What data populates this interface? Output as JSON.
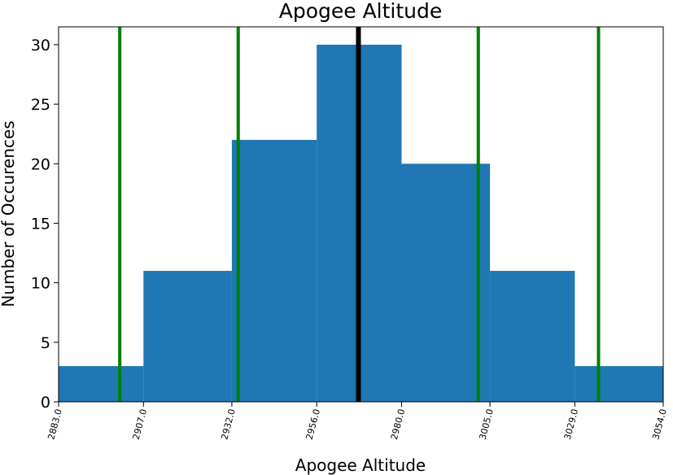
{
  "chart_data": {
    "type": "bar",
    "title": "Apogee Altitude",
    "xlabel": "Apogee Altitude",
    "ylabel": "Number of Occurences",
    "bin_edges": [
      2883.0,
      2907.0,
      2932.0,
      2956.0,
      2980.0,
      3005.0,
      3029.0,
      3054.0
    ],
    "x_tick_labels": [
      "2883.0",
      "2907.0",
      "2932.0",
      "2956.0",
      "2980.0",
      "3005.0",
      "3029.0",
      "3054.0"
    ],
    "values": [
      3,
      11,
      22,
      30,
      20,
      11,
      3
    ],
    "xlim": [
      2883.0,
      3054.0
    ],
    "ylim": [
      0,
      31.5
    ],
    "y_ticks": [
      0,
      5,
      10,
      15,
      20,
      25,
      30
    ],
    "y_tick_labels": [
      "0",
      "5",
      "10",
      "15",
      "20",
      "25",
      "30"
    ],
    "vlines": [
      {
        "x": 2900.3,
        "color": "#008000"
      },
      {
        "x": 2933.8,
        "color": "#008000"
      },
      {
        "x": 2967.8,
        "color": "#000000"
      },
      {
        "x": 3001.7,
        "color": "#008000"
      },
      {
        "x": 3035.7,
        "color": "#008000"
      }
    ],
    "bar_color": "#1f77b4",
    "grid": false,
    "legend": "none"
  }
}
